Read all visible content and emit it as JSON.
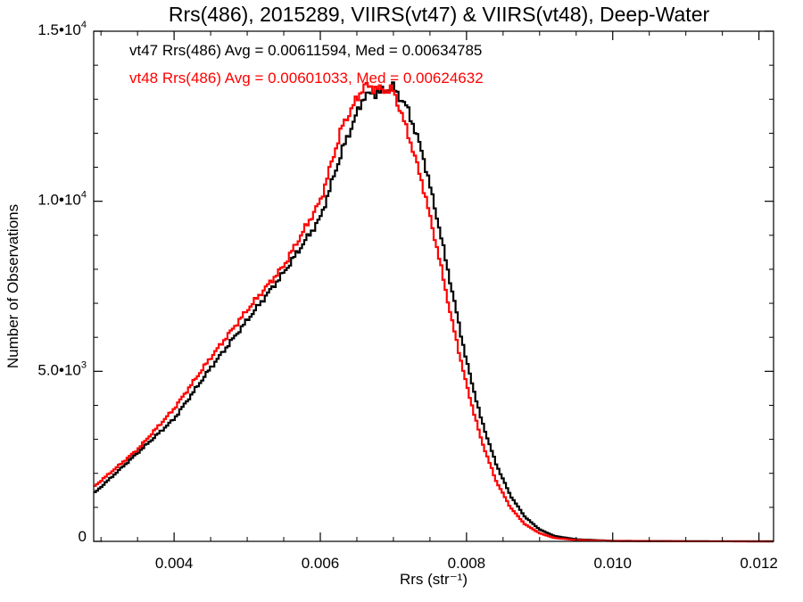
{
  "chart_data": {
    "type": "line",
    "style": "step-histogram",
    "title": "Rrs(486), 2015289, VIIRS(vt47) & VIIRS(vt48), Deep-Water",
    "xlabel": "Rrs (str⁻¹)",
    "ylabel": "Number of Observations",
    "xlim": [
      0.0029,
      0.0122
    ],
    "ylim": [
      0,
      15000
    ],
    "x_ticks": [
      {
        "value": 0.004,
        "label": "0.004"
      },
      {
        "value": 0.006,
        "label": "0.006"
      },
      {
        "value": 0.008,
        "label": "0.008"
      },
      {
        "value": 0.01,
        "label": "0.010"
      },
      {
        "value": 0.012,
        "label": "0.012"
      }
    ],
    "y_ticks": [
      {
        "value": 0,
        "mantissa": "0",
        "exponent": ""
      },
      {
        "value": 5000,
        "mantissa": "5.0•10",
        "exponent": "3"
      },
      {
        "value": 10000,
        "mantissa": "1.0•10",
        "exponent": "4"
      },
      {
        "value": 15000,
        "mantissa": "1.5•10",
        "exponent": "4"
      }
    ],
    "grid": false,
    "annotations": [
      {
        "text": "vt47 Rrs(486) Avg = 0.00611594, Med = 0.00634785",
        "color": "#000000"
      },
      {
        "text": "vt48 Rrs(486) Avg = 0.00601033, Med = 0.00624632",
        "color": "#ff0000"
      }
    ],
    "x": [
      0.0029,
      0.0035,
      0.004,
      0.0045,
      0.005,
      0.0055,
      0.006,
      0.0063,
      0.0066,
      0.0068,
      0.007,
      0.0072,
      0.0074,
      0.0076,
      0.0078,
      0.008,
      0.0082,
      0.0084,
      0.0086,
      0.0088,
      0.009,
      0.0092,
      0.0095,
      0.01,
      0.011,
      0.0122
    ],
    "series": [
      {
        "name": "vt47",
        "color": "#000000",
        "values": [
          1400,
          2600,
          3600,
          5100,
          6500,
          7900,
          9500,
          11500,
          13100,
          13200,
          13350,
          12700,
          11400,
          9500,
          7400,
          5300,
          3600,
          2300,
          1350,
          720,
          350,
          160,
          60,
          15,
          3,
          0
        ]
      },
      {
        "name": "vt48",
        "color": "#ff0000",
        "values": [
          1600,
          2700,
          3900,
          5400,
          6800,
          8100,
          10000,
          12200,
          13400,
          13300,
          13250,
          12000,
          10500,
          8600,
          6500,
          4600,
          3000,
          1800,
          1000,
          500,
          240,
          100,
          40,
          10,
          2,
          0
        ]
      }
    ]
  }
}
